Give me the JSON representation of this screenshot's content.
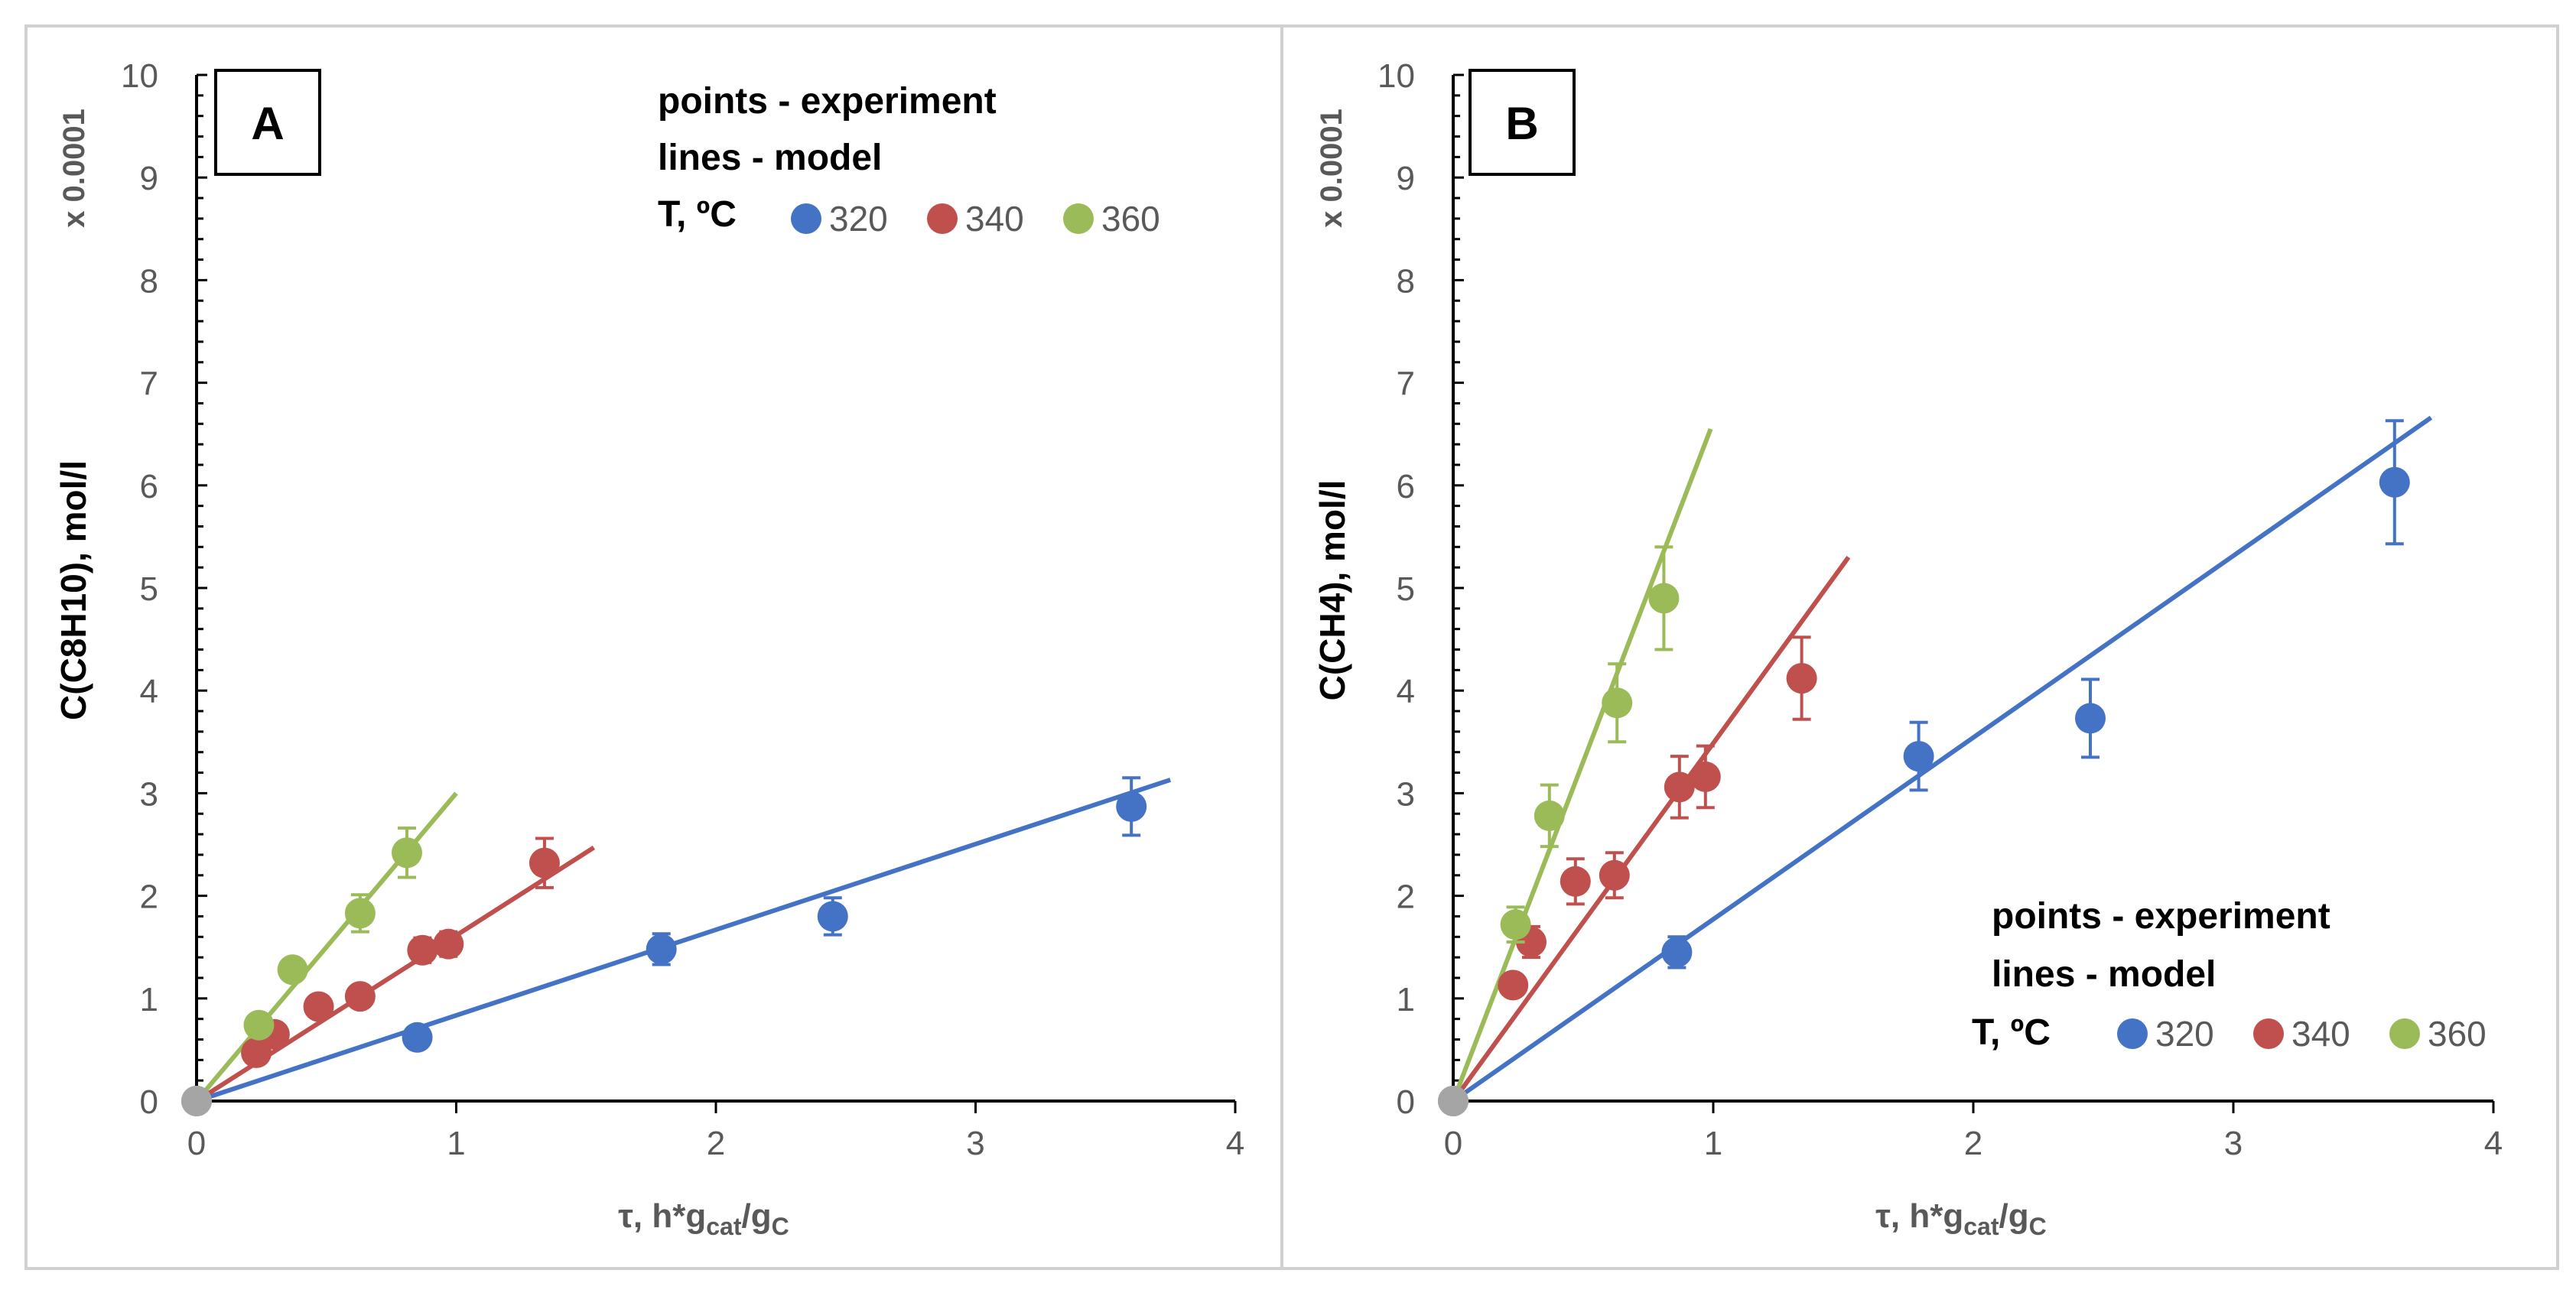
{
  "chart_data": [
    {
      "type": "scatter",
      "panel_label": "A",
      "ylabel": "C(C8H10), mol/l",
      "y_scale_note": "x 0.0001",
      "xlabel": {
        "prefix": "τ, h*g",
        "sub1": "cat",
        "mid": "/g",
        "sub2": "C"
      },
      "xlim": [
        0,
        4
      ],
      "ylim": [
        0,
        10
      ],
      "xticks": [
        0,
        1,
        2,
        3,
        4
      ],
      "yticks": [
        0,
        1,
        2,
        3,
        4,
        5,
        6,
        7,
        8,
        9,
        10
      ],
      "legend": {
        "line1": "points - experiment",
        "line2": "lines - model",
        "title": "T, ºC",
        "position": "top"
      },
      "series": [
        {
          "name": "320",
          "color": "#4472C4",
          "points": [
            {
              "x": 0,
              "y": 0
            },
            {
              "x": 0.85,
              "y": 0.62
            },
            {
              "x": 1.79,
              "y": 1.48,
              "err": 0.15
            },
            {
              "x": 2.45,
              "y": 1.8,
              "err": 0.18
            },
            {
              "x": 3.6,
              "y": 2.87,
              "err": 0.28
            }
          ],
          "model": [
            [
              0,
              0
            ],
            [
              3.75,
              3.13
            ]
          ]
        },
        {
          "name": "340",
          "color": "#C0504D",
          "points": [
            {
              "x": 0,
              "y": 0
            },
            {
              "x": 0.23,
              "y": 0.47
            },
            {
              "x": 0.3,
              "y": 0.65
            },
            {
              "x": 0.47,
              "y": 0.92
            },
            {
              "x": 0.63,
              "y": 1.02
            },
            {
              "x": 0.87,
              "y": 1.47,
              "err": 0.12
            },
            {
              "x": 0.97,
              "y": 1.53,
              "err": 0.12
            },
            {
              "x": 1.34,
              "y": 2.32,
              "err": 0.24
            }
          ],
          "model": [
            [
              0,
              0
            ],
            [
              1.53,
              2.47
            ]
          ]
        },
        {
          "name": "360",
          "color": "#9BBB59",
          "points": [
            {
              "x": 0,
              "y": 0
            },
            {
              "x": 0.24,
              "y": 0.74
            },
            {
              "x": 0.37,
              "y": 1.28,
              "err": 0.1
            },
            {
              "x": 0.63,
              "y": 1.83,
              "err": 0.18
            },
            {
              "x": 0.81,
              "y": 2.42,
              "err": 0.24
            }
          ],
          "model": [
            [
              0,
              0
            ],
            [
              1.0,
              3.0
            ]
          ]
        }
      ]
    },
    {
      "type": "scatter",
      "panel_label": "B",
      "ylabel": "C(CH4), mol/l",
      "y_scale_note": "x 0.0001",
      "xlabel": {
        "prefix": "τ, h*g",
        "sub1": "cat",
        "mid": "/g",
        "sub2": "C"
      },
      "xlim": [
        0,
        4
      ],
      "ylim": [
        0,
        10
      ],
      "xticks": [
        0,
        1,
        2,
        3,
        4
      ],
      "yticks": [
        0,
        1,
        2,
        3,
        4,
        5,
        6,
        7,
        8,
        9,
        10
      ],
      "legend": {
        "line1": "points - experiment",
        "line2": "lines - model",
        "title": "T, ºC",
        "position": "bottom-right"
      },
      "series": [
        {
          "name": "320",
          "color": "#4472C4",
          "points": [
            {
              "x": 0,
              "y": 0
            },
            {
              "x": 0.86,
              "y": 1.45,
              "err": 0.15
            },
            {
              "x": 1.79,
              "y": 3.36,
              "err": 0.33
            },
            {
              "x": 2.45,
              "y": 3.73,
              "err": 0.38
            },
            {
              "x": 3.62,
              "y": 6.03,
              "err": 0.6
            }
          ],
          "model": [
            [
              0,
              0
            ],
            [
              3.76,
              6.66
            ]
          ]
        },
        {
          "name": "340",
          "color": "#C0504D",
          "points": [
            {
              "x": 0,
              "y": 0
            },
            {
              "x": 0.23,
              "y": 1.13
            },
            {
              "x": 0.3,
              "y": 1.55,
              "err": 0.15
            },
            {
              "x": 0.47,
              "y": 2.14,
              "err": 0.22
            },
            {
              "x": 0.62,
              "y": 2.2,
              "err": 0.22
            },
            {
              "x": 0.87,
              "y": 3.06,
              "err": 0.3
            },
            {
              "x": 0.97,
              "y": 3.16,
              "err": 0.3
            },
            {
              "x": 1.34,
              "y": 4.12,
              "err": 0.4
            }
          ],
          "model": [
            [
              0,
              0
            ],
            [
              1.52,
              5.3
            ]
          ]
        },
        {
          "name": "360",
          "color": "#9BBB59",
          "points": [
            {
              "x": 0,
              "y": 0
            },
            {
              "x": 0.24,
              "y": 1.72,
              "err": 0.17
            },
            {
              "x": 0.37,
              "y": 2.78,
              "err": 0.3
            },
            {
              "x": 0.63,
              "y": 3.88,
              "err": 0.38
            },
            {
              "x": 0.81,
              "y": 4.9,
              "err": 0.5
            }
          ],
          "model": [
            [
              0,
              0
            ],
            [
              0.99,
              6.55
            ]
          ]
        }
      ]
    }
  ]
}
